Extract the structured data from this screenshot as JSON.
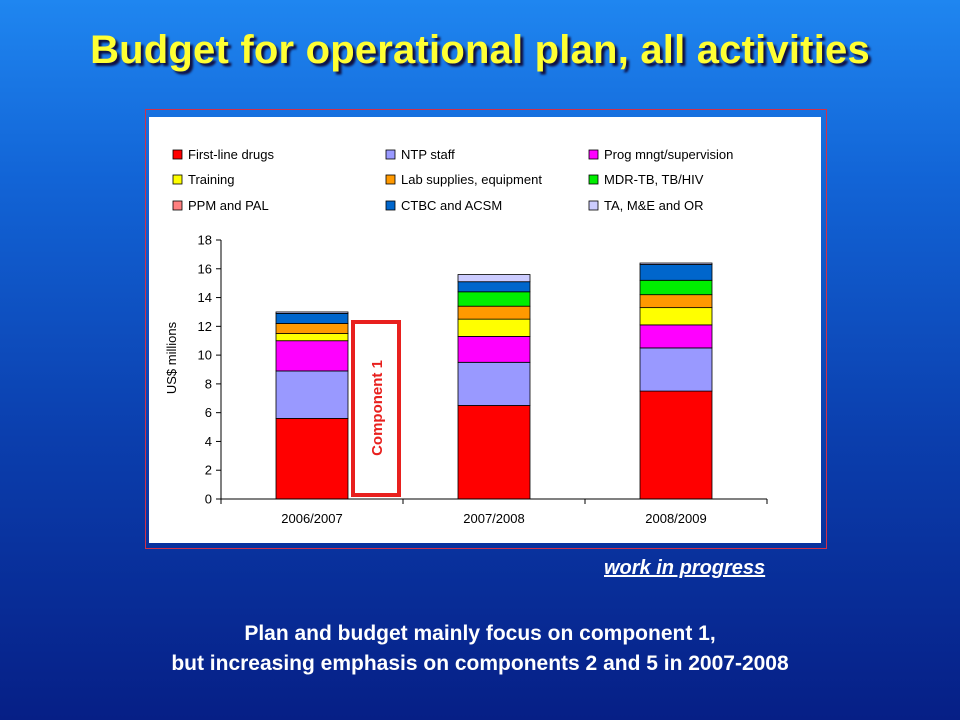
{
  "slide": {
    "title": "Budget for operational plan, all activities",
    "note": "work in progress",
    "caption_line1": "Plan and budget mainly focus on component 1,",
    "caption_line2": "but increasing emphasis on components 2 and 5 in 2007-2008"
  },
  "colors": {
    "title": "#ffff33",
    "callout_border": "#e8201e",
    "callout_text": "#e8201e"
  },
  "chart_data": {
    "type": "bar",
    "stacked": true,
    "categories": [
      "2006/2007",
      "2007/2008",
      "2008/2009"
    ],
    "ylabel": "US$ millions",
    "xlabel": "",
    "ylim": [
      0,
      18
    ],
    "yticks": [
      0,
      2,
      4,
      6,
      8,
      10,
      12,
      14,
      16,
      18
    ],
    "grid": false,
    "legend_position": "top",
    "annotation": "Component 1",
    "series": [
      {
        "name": "First-line drugs",
        "color": "#ff0000",
        "values": [
          5.6,
          6.5,
          7.5
        ]
      },
      {
        "name": "NTP staff",
        "color": "#9999ff",
        "values": [
          3.3,
          3.0,
          3.0
        ]
      },
      {
        "name": "Prog mngt/supervision",
        "color": "#ff00ff",
        "values": [
          2.1,
          1.8,
          1.6
        ]
      },
      {
        "name": "Training",
        "color": "#ffff00",
        "values": [
          0.5,
          1.2,
          1.2
        ]
      },
      {
        "name": "Lab supplies, equipment",
        "color": "#ff9900",
        "values": [
          0.7,
          0.9,
          0.9
        ]
      },
      {
        "name": "MDR-TB, TB/HIV",
        "color": "#00ee00",
        "values": [
          0.0,
          1.0,
          1.0
        ]
      },
      {
        "name": "PPM and PAL",
        "color": "#ff8080",
        "values": [
          0.0,
          0.0,
          0.0
        ]
      },
      {
        "name": "CTBC and ACSM",
        "color": "#0066cc",
        "values": [
          0.7,
          0.7,
          1.1
        ]
      },
      {
        "name": "TA, M&E and OR",
        "color": "#ccccff",
        "values": [
          0.1,
          0.5,
          0.1
        ]
      }
    ]
  }
}
